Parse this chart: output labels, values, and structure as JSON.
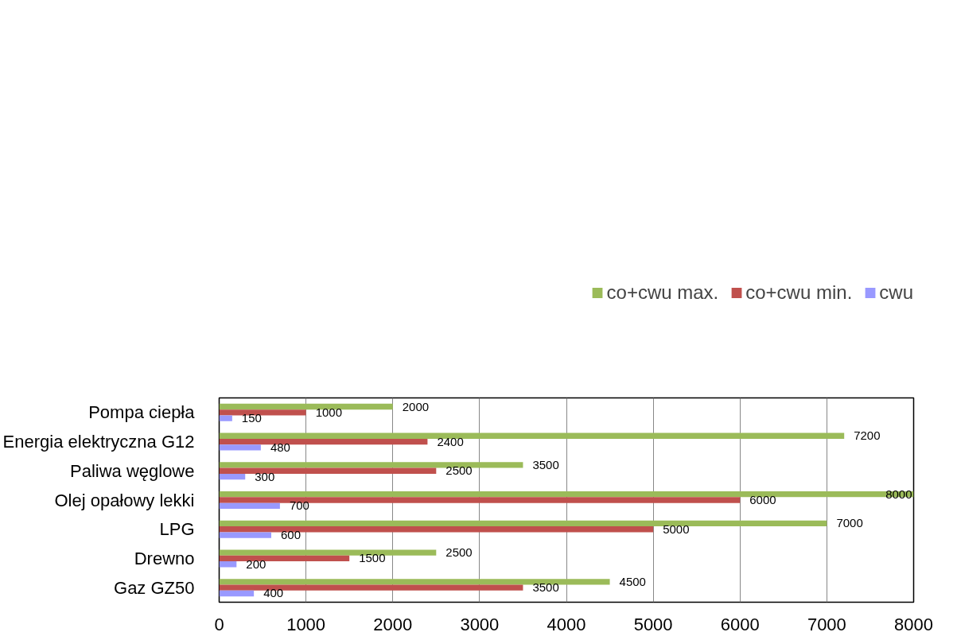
{
  "chart_data": {
    "type": "bar",
    "orientation": "horizontal",
    "categories": [
      "Pompa ciepła",
      "Energia elektryczna G12",
      "Paliwa węglowe",
      "Olej opałowy lekki",
      "LPG",
      "Drewno",
      "Gaz GZ50"
    ],
    "series": [
      {
        "name": "co+cwu max.",
        "color": "#9bbb59",
        "values": [
          2000,
          7200,
          3500,
          8000,
          7000,
          2500,
          4500
        ]
      },
      {
        "name": "co+cwu min.",
        "color": "#c0504d",
        "values": [
          1000,
          2400,
          2500,
          6000,
          5000,
          1500,
          3500
        ]
      },
      {
        "name": "cwu",
        "color": "#9999ff",
        "values": [
          150,
          480,
          300,
          700,
          600,
          200,
          400
        ]
      }
    ],
    "xlim": [
      0,
      8000
    ],
    "xticks": [
      0,
      1000,
      2000,
      3000,
      4000,
      5000,
      6000,
      7000,
      8000
    ],
    "grid": "x",
    "legend": "top right",
    "data_labels": true
  }
}
